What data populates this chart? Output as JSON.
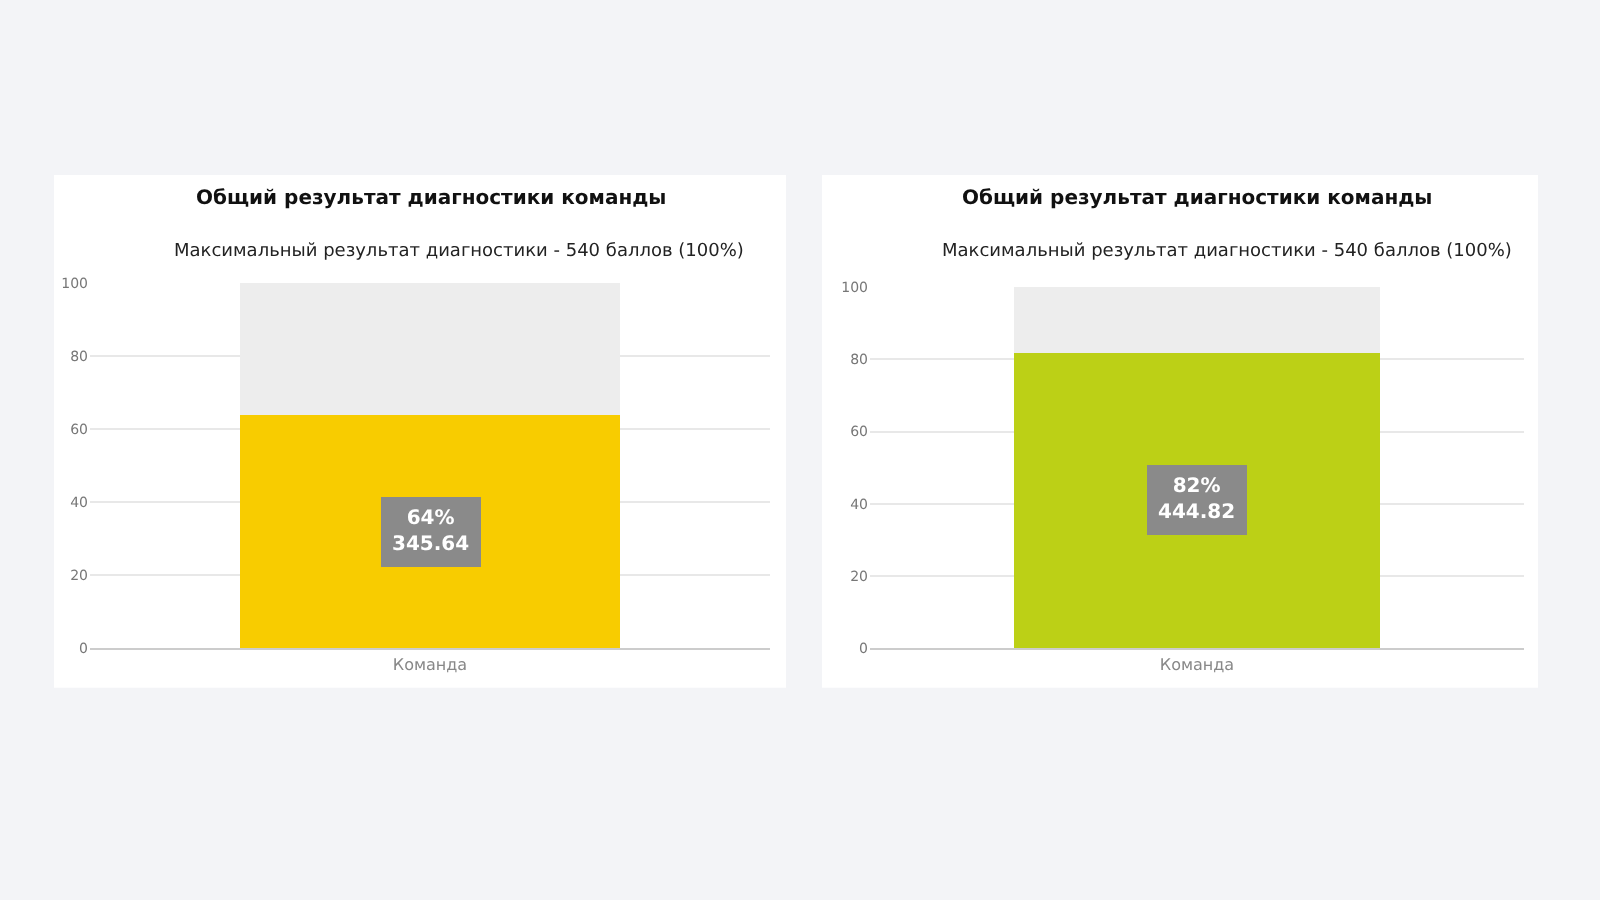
{
  "chart_data": [
    {
      "type": "bar",
      "title": "Общий результат диагностики команды",
      "subtitle": "Максимальный результат диагностики - 540 баллов (100%)",
      "categories": [
        "Команда"
      ],
      "stacked": true,
      "ylim": [
        0,
        100
      ],
      "yticks": [
        0,
        20,
        40,
        60,
        80,
        100
      ],
      "grid": "y",
      "series": [
        {
          "color": "#f8cc00",
          "values": [
            64
          ],
          "value_labels": [
            "64%\n345.64"
          ]
        },
        {
          "color": "#ededed",
          "values": [
            36
          ]
        }
      ]
    },
    {
      "type": "bar",
      "title": "Общий результат диагностики команды",
      "subtitle": "Максимальный результат диагностики - 540 баллов (100%)",
      "categories": [
        "Команда"
      ],
      "stacked": true,
      "ylim": [
        0,
        100
      ],
      "yticks": [
        0,
        20,
        40,
        60,
        80,
        100
      ],
      "grid": "y",
      "series": [
        {
          "color": "#bcd016",
          "values": [
            82
          ],
          "value_labels": [
            "82%\n444.82"
          ]
        },
        {
          "color": "#ededed",
          "values": [
            18
          ]
        }
      ]
    }
  ]
}
